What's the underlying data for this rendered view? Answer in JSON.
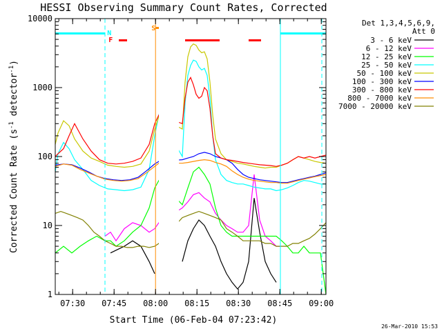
{
  "chart_data": {
    "type": "line",
    "title": "HESSI Observing Summary Count Rates, Corrected",
    "xlabel": "Start Time (06-Feb-04 07:23:42)",
    "ylabel": "Corrected Count Rate (s⁻¹ detector⁻¹)",
    "ylabel_parts": [
      "Corrected Count Rate (s",
      "-1",
      " detector",
      "-1",
      ")"
    ],
    "yscale": "log",
    "ylim": [
      1,
      10000
    ],
    "xlim_minutes": [
      0,
      98
    ],
    "xtick_labels": [
      "07:30",
      "07:45",
      "08:00",
      "08:15",
      "08:30",
      "08:45",
      "09:00"
    ],
    "xtick_minutes": [
      6.3,
      21.3,
      36.3,
      51.3,
      66.3,
      81.3,
      96.3
    ],
    "ytick_labels": [
      "1",
      "10",
      "100",
      "1000",
      "10000"
    ],
    "ytick_values": [
      1,
      10,
      100,
      1000,
      10000
    ],
    "legend": {
      "header1": "Det 1,3,4,5,6,9,",
      "header2": "Att 0",
      "placement": "right"
    },
    "series": [
      {
        "name": "3 - 6 keV",
        "color": "#000000",
        "x": [
          0,
          5,
          10,
          15,
          20,
          25,
          28,
          31,
          34,
          36,
          40,
          45,
          46,
          48,
          50,
          52,
          54,
          56,
          58,
          60,
          62,
          64,
          66,
          68,
          70,
          72,
          74,
          76,
          78,
          80,
          81.5
        ],
        "y": [
          null,
          null,
          null,
          null,
          4,
          5,
          6,
          5,
          3,
          2,
          null,
          null,
          3,
          6,
          9,
          12,
          10,
          7,
          5,
          3,
          2,
          1.5,
          1.2,
          1.5,
          3,
          25,
          8,
          3,
          2,
          1.5,
          null
        ]
      },
      {
        "name": "6 - 12 keV",
        "color": "#ff00ff",
        "x": [
          0,
          5,
          10,
          15,
          18,
          20,
          22,
          25,
          28,
          31,
          34,
          36,
          37.5,
          46,
          48,
          50,
          52,
          54,
          56,
          58,
          60,
          62,
          64,
          66,
          68,
          70,
          72,
          74,
          76,
          78,
          80,
          81.5
        ],
        "y": [
          null,
          null,
          null,
          null,
          7,
          8,
          6,
          9,
          11,
          10,
          8,
          9,
          11,
          18,
          22,
          28,
          30,
          25,
          22,
          15,
          12,
          10,
          9,
          8,
          8,
          10,
          55,
          12,
          7,
          6,
          5,
          5
        ]
      },
      {
        "name": "12 - 25 keV",
        "color": "#00ff00",
        "x": [
          0,
          3,
          6,
          9,
          12,
          15,
          18,
          20,
          22,
          25,
          28,
          31,
          34,
          36,
          37.5,
          46,
          48,
          50,
          52,
          54,
          56,
          58,
          60,
          62,
          64,
          66,
          68,
          70,
          72,
          74,
          76,
          78,
          80,
          82,
          84,
          86,
          88,
          90,
          92,
          94,
          96,
          98
        ],
        "y": [
          4,
          5,
          4,
          5,
          6,
          7,
          6,
          6,
          5,
          6,
          8,
          10,
          18,
          35,
          45,
          20,
          35,
          60,
          70,
          55,
          40,
          18,
          10,
          8,
          7,
          7,
          7,
          7,
          7,
          7,
          7,
          7,
          7,
          6,
          5,
          4,
          4,
          5,
          4,
          4,
          4,
          1
        ]
      },
      {
        "name": "25 - 50 keV",
        "color": "#00ffff",
        "x": [
          0,
          1,
          3,
          5,
          7,
          10,
          13,
          16,
          19,
          22,
          25,
          28,
          31,
          34,
          36,
          37.5,
          46,
          47,
          48,
          49,
          50,
          51,
          52,
          53,
          54,
          55,
          56,
          57,
          58,
          60,
          62,
          64,
          66,
          68,
          70,
          72,
          74,
          76,
          78,
          80,
          82,
          84,
          86,
          88,
          90,
          92,
          94,
          96,
          98
        ],
        "y": [
          60,
          110,
          160,
          130,
          90,
          65,
          45,
          38,
          34,
          33,
          32,
          33,
          36,
          65,
          200,
          400,
          100,
          600,
          1500,
          2100,
          2500,
          2400,
          2000,
          1800,
          1900,
          1500,
          700,
          200,
          90,
          55,
          45,
          42,
          40,
          40,
          38,
          36,
          35,
          34,
          34,
          32,
          33,
          35,
          38,
          42,
          45,
          44,
          42,
          40,
          40
        ]
      },
      {
        "name": "50 - 100 keV",
        "color": "#c8c800",
        "x": [
          0,
          1,
          3,
          5,
          7,
          10,
          13,
          16,
          19,
          22,
          25,
          28,
          31,
          34,
          36,
          37.5,
          46,
          47,
          48,
          49,
          50,
          51,
          52,
          53,
          54,
          55,
          56,
          57,
          58,
          60,
          62,
          64,
          66,
          68,
          70,
          72,
          74,
          76,
          78,
          80,
          82,
          84,
          86,
          88,
          90,
          92,
          94,
          96,
          98
        ],
        "y": [
          150,
          220,
          330,
          280,
          180,
          120,
          95,
          85,
          75,
          72,
          70,
          72,
          78,
          120,
          250,
          380,
          250,
          1200,
          2800,
          3900,
          4300,
          4100,
          3500,
          3200,
          3300,
          2600,
          1200,
          400,
          180,
          110,
          90,
          85,
          80,
          78,
          75,
          72,
          70,
          68,
          70,
          70,
          75,
          80,
          90,
          100,
          95,
          90,
          85,
          82,
          80
        ]
      },
      {
        "name": "100 - 300 keV",
        "color": "#0000ff",
        "x": [
          0,
          3,
          6,
          9,
          12,
          15,
          18,
          21,
          24,
          27,
          30,
          33,
          36,
          37.5,
          46,
          48,
          50,
          52,
          54,
          56,
          58,
          60,
          62,
          64,
          66,
          68,
          70,
          72,
          74,
          76,
          78,
          80,
          82,
          84,
          86,
          88,
          90,
          92,
          94,
          96,
          98
        ],
        "y": [
          75,
          78,
          76,
          68,
          60,
          52,
          48,
          46,
          45,
          46,
          50,
          62,
          78,
          85,
          90,
          95,
          100,
          110,
          115,
          110,
          100,
          95,
          90,
          80,
          65,
          55,
          50,
          48,
          46,
          45,
          44,
          43,
          42,
          42,
          44,
          46,
          48,
          50,
          52,
          55,
          58
        ]
      },
      {
        "name": "300 - 800 keV",
        "color": "#ff0000",
        "x": [
          0,
          1,
          3,
          5,
          7,
          10,
          13,
          16,
          19,
          22,
          25,
          28,
          31,
          34,
          36,
          37.5,
          46,
          47,
          48,
          49,
          50,
          51,
          52,
          53,
          54,
          55,
          56,
          57,
          58,
          60,
          62,
          64,
          66,
          68,
          70,
          72,
          74,
          76,
          78,
          80,
          82,
          84,
          86,
          88,
          90,
          92,
          94,
          96,
          98
        ],
        "y": [
          100,
          110,
          130,
          200,
          300,
          180,
          120,
          90,
          80,
          78,
          80,
          85,
          95,
          150,
          300,
          400,
          300,
          700,
          1200,
          1400,
          1100,
          800,
          700,
          750,
          1000,
          900,
          500,
          200,
          110,
          95,
          90,
          88,
          85,
          82,
          80,
          78,
          76,
          75,
          74,
          72,
          75,
          80,
          90,
          100,
          95,
          100,
          95,
          100,
          105
        ]
      },
      {
        "name": "800 - 7000 keV",
        "color": "#ff8c00",
        "x": [
          0,
          3,
          6,
          9,
          12,
          15,
          18,
          21,
          24,
          27,
          30,
          33,
          36,
          37.5,
          46,
          48,
          50,
          52,
          54,
          56,
          58,
          60,
          62,
          64,
          66,
          68,
          70,
          72,
          74,
          76,
          78,
          80,
          82,
          84,
          86,
          88,
          90,
          92,
          94,
          96,
          98
        ],
        "y": [
          72,
          78,
          75,
          65,
          58,
          52,
          47,
          45,
          44,
          45,
          48,
          58,
          72,
          80,
          80,
          82,
          85,
          88,
          90,
          88,
          82,
          78,
          72,
          62,
          55,
          50,
          47,
          45,
          44,
          43,
          42,
          42,
          41,
          41,
          43,
          45,
          47,
          49,
          51,
          53,
          55
        ]
      },
      {
        "name": "7000 - 20000 keV",
        "color": "#808000",
        "x": [
          0,
          2,
          4,
          6,
          8,
          10,
          12,
          14,
          16,
          18,
          20,
          22,
          24,
          26,
          28,
          30,
          32,
          34,
          36,
          37.5,
          46,
          48,
          50,
          52,
          54,
          56,
          58,
          60,
          62,
          64,
          66,
          68,
          70,
          72,
          74,
          76,
          78,
          80,
          82,
          84,
          86,
          88,
          90,
          92,
          94,
          96,
          98
        ],
        "y": [
          15,
          16,
          15,
          14,
          13,
          12,
          10,
          8,
          7,
          6,
          5.5,
          5,
          5,
          4.8,
          4.8,
          5,
          5,
          4.8,
          5,
          5.5,
          13,
          14,
          15,
          16,
          15,
          14,
          13,
          12,
          9,
          8,
          7,
          6,
          6,
          6,
          6,
          5.5,
          5.5,
          5,
          5,
          5,
          5.5,
          5.5,
          6,
          6.5,
          7.5,
          9,
          11
        ]
      }
    ],
    "annotations": {
      "saa_label": "S",
      "night_label": "N",
      "flare_label": "F"
    },
    "colors": {
      "night_bar": "#00ffff",
      "saa_bar": "#ff8c00",
      "flare_bar": "#ff0000",
      "axes": "#000000"
    }
  },
  "footer": {
    "timestamp": "26-Mar-2010 15:53"
  }
}
